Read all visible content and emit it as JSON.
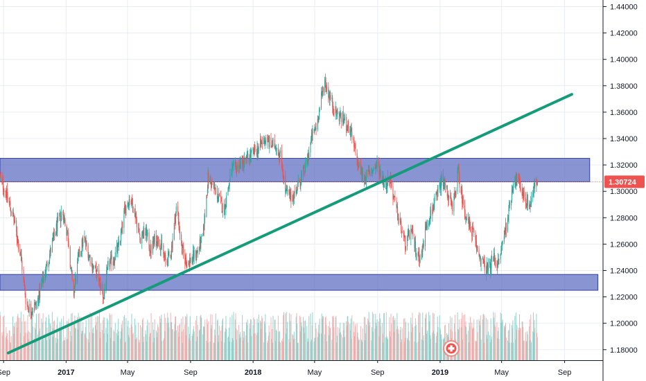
{
  "chart_data": {
    "type": "candlestick",
    "instrument_note": "",
    "y_range": [
      1.17,
      1.445
    ],
    "x_range": [
      "2016-08-25",
      "2019-11-15"
    ],
    "y_ticks": [
      "1.44000",
      "1.42000",
      "1.40000",
      "1.38000",
      "1.36000",
      "1.34000",
      "1.32000",
      "1.30000",
      "1.28000",
      "1.26000",
      "1.24000",
      "1.22000",
      "1.20000",
      "1.18000"
    ],
    "x_ticks": [
      {
        "date": "2016-09-01",
        "label": "Sep",
        "bold": false
      },
      {
        "date": "2017-01-01",
        "label": "2017",
        "bold": true
      },
      {
        "date": "2017-05-01",
        "label": "May",
        "bold": false
      },
      {
        "date": "2017-09-01",
        "label": "Sep",
        "bold": false
      },
      {
        "date": "2018-01-01",
        "label": "2018",
        "bold": true
      },
      {
        "date": "2018-05-01",
        "label": "May",
        "bold": false
      },
      {
        "date": "2018-09-01",
        "label": "Sep",
        "bold": false
      },
      {
        "date": "2019-01-01",
        "label": "2019",
        "bold": true
      },
      {
        "date": "2019-05-01",
        "label": "May",
        "bold": false
      },
      {
        "date": "2019-09-01",
        "label": "Sep",
        "bold": false
      }
    ],
    "last_price": "1.30724",
    "last_price_value": 1.30724,
    "price_path": [
      [
        "2016-08-25",
        1.31
      ],
      [
        "2016-09-05",
        1.3
      ],
      [
        "2016-09-20",
        1.28
      ],
      [
        "2016-10-05",
        1.25
      ],
      [
        "2016-10-15",
        1.215
      ],
      [
        "2016-10-25",
        1.21
      ],
      [
        "2016-11-05",
        1.215
      ],
      [
        "2016-11-15",
        1.23
      ],
      [
        "2016-11-25",
        1.245
      ],
      [
        "2016-12-05",
        1.26
      ],
      [
        "2016-12-15",
        1.275
      ],
      [
        "2016-12-25",
        1.285
      ],
      [
        "2017-01-05",
        1.265
      ],
      [
        "2017-01-15",
        1.22
      ],
      [
        "2017-01-25",
        1.25
      ],
      [
        "2017-02-05",
        1.265
      ],
      [
        "2017-02-20",
        1.245
      ],
      [
        "2017-03-05",
        1.235
      ],
      [
        "2017-03-15",
        1.22
      ],
      [
        "2017-03-25",
        1.245
      ],
      [
        "2017-04-05",
        1.25
      ],
      [
        "2017-04-15",
        1.26
      ],
      [
        "2017-04-25",
        1.285
      ],
      [
        "2017-05-05",
        1.295
      ],
      [
        "2017-05-15",
        1.285
      ],
      [
        "2017-05-25",
        1.265
      ],
      [
        "2017-06-05",
        1.27
      ],
      [
        "2017-06-15",
        1.255
      ],
      [
        "2017-06-25",
        1.265
      ],
      [
        "2017-07-05",
        1.26
      ],
      [
        "2017-07-15",
        1.245
      ],
      [
        "2017-07-25",
        1.255
      ],
      [
        "2017-08-05",
        1.29
      ],
      [
        "2017-08-15",
        1.255
      ],
      [
        "2017-08-25",
        1.245
      ],
      [
        "2017-09-05",
        1.25
      ],
      [
        "2017-09-15",
        1.255
      ],
      [
        "2017-09-25",
        1.265
      ],
      [
        "2017-10-05",
        1.31
      ],
      [
        "2017-10-20",
        1.3
      ],
      [
        "2017-11-05",
        1.285
      ],
      [
        "2017-11-20",
        1.315
      ],
      [
        "2017-12-05",
        1.32
      ],
      [
        "2017-12-20",
        1.325
      ],
      [
        "2018-01-05",
        1.33
      ],
      [
        "2018-01-15",
        1.335
      ],
      [
        "2018-01-25",
        1.34
      ],
      [
        "2018-02-05",
        1.335
      ],
      [
        "2018-02-15",
        1.335
      ],
      [
        "2018-02-25",
        1.325
      ],
      [
        "2018-03-05",
        1.3
      ],
      [
        "2018-03-15",
        1.295
      ],
      [
        "2018-03-25",
        1.3
      ],
      [
        "2018-04-05",
        1.31
      ],
      [
        "2018-04-15",
        1.32
      ],
      [
        "2018-04-25",
        1.34
      ],
      [
        "2018-05-05",
        1.35
      ],
      [
        "2018-05-12",
        1.365
      ],
      [
        "2018-05-20",
        1.385
      ],
      [
        "2018-05-28",
        1.375
      ],
      [
        "2018-06-10",
        1.36
      ],
      [
        "2018-06-25",
        1.355
      ],
      [
        "2018-07-10",
        1.345
      ],
      [
        "2018-07-25",
        1.32
      ],
      [
        "2018-08-05",
        1.31
      ],
      [
        "2018-08-20",
        1.315
      ],
      [
        "2018-09-01",
        1.32
      ],
      [
        "2018-09-15",
        1.305
      ],
      [
        "2018-09-25",
        1.31
      ],
      [
        "2018-10-05",
        1.29
      ],
      [
        "2018-10-15",
        1.275
      ],
      [
        "2018-10-25",
        1.26
      ],
      [
        "2018-11-05",
        1.27
      ],
      [
        "2018-11-15",
        1.255
      ],
      [
        "2018-11-25",
        1.25
      ],
      [
        "2018-12-05",
        1.275
      ],
      [
        "2018-12-15",
        1.285
      ],
      [
        "2018-12-25",
        1.295
      ],
      [
        "2019-01-05",
        1.31
      ],
      [
        "2019-01-15",
        1.3
      ],
      [
        "2019-01-25",
        1.285
      ],
      [
        "2019-02-05",
        1.315
      ],
      [
        "2019-02-15",
        1.29
      ],
      [
        "2019-02-25",
        1.275
      ],
      [
        "2019-03-05",
        1.27
      ],
      [
        "2019-03-15",
        1.255
      ],
      [
        "2019-03-25",
        1.245
      ],
      [
        "2019-04-05",
        1.24
      ],
      [
        "2019-04-15",
        1.25
      ],
      [
        "2019-04-25",
        1.245
      ],
      [
        "2019-05-05",
        1.265
      ],
      [
        "2019-05-15",
        1.285
      ],
      [
        "2019-05-25",
        1.31
      ],
      [
        "2019-06-05",
        1.305
      ],
      [
        "2019-06-15",
        1.295
      ],
      [
        "2019-06-25",
        1.29
      ],
      [
        "2019-07-05",
        1.305
      ],
      [
        "2019-07-10",
        1.3072
      ]
    ],
    "resistance_zone": {
      "from": "2016-08-25",
      "to": "2019-10-20",
      "low": 1.30724,
      "high": 1.325
    },
    "support_zone": {
      "from": "2016-08-25",
      "to": "2019-11-05",
      "low": 1.225,
      "high": 1.237
    },
    "trendline": {
      "start": [
        "2016-09-10",
        1.1775
      ],
      "end": [
        "2019-09-15",
        1.3735
      ]
    },
    "colors": {
      "up": "#26a69a",
      "down": "#ef5350",
      "up_volume": "#80cbc4",
      "down_volume": "#f5a6a4",
      "zone_fill": "#5c6bc0",
      "zone_border": "#303f9f",
      "trendline": "#159b7a",
      "price_line": "#ef5350",
      "badge": "#ef5350",
      "grid": "#e9edf3",
      "axis": "#131722"
    }
  }
}
